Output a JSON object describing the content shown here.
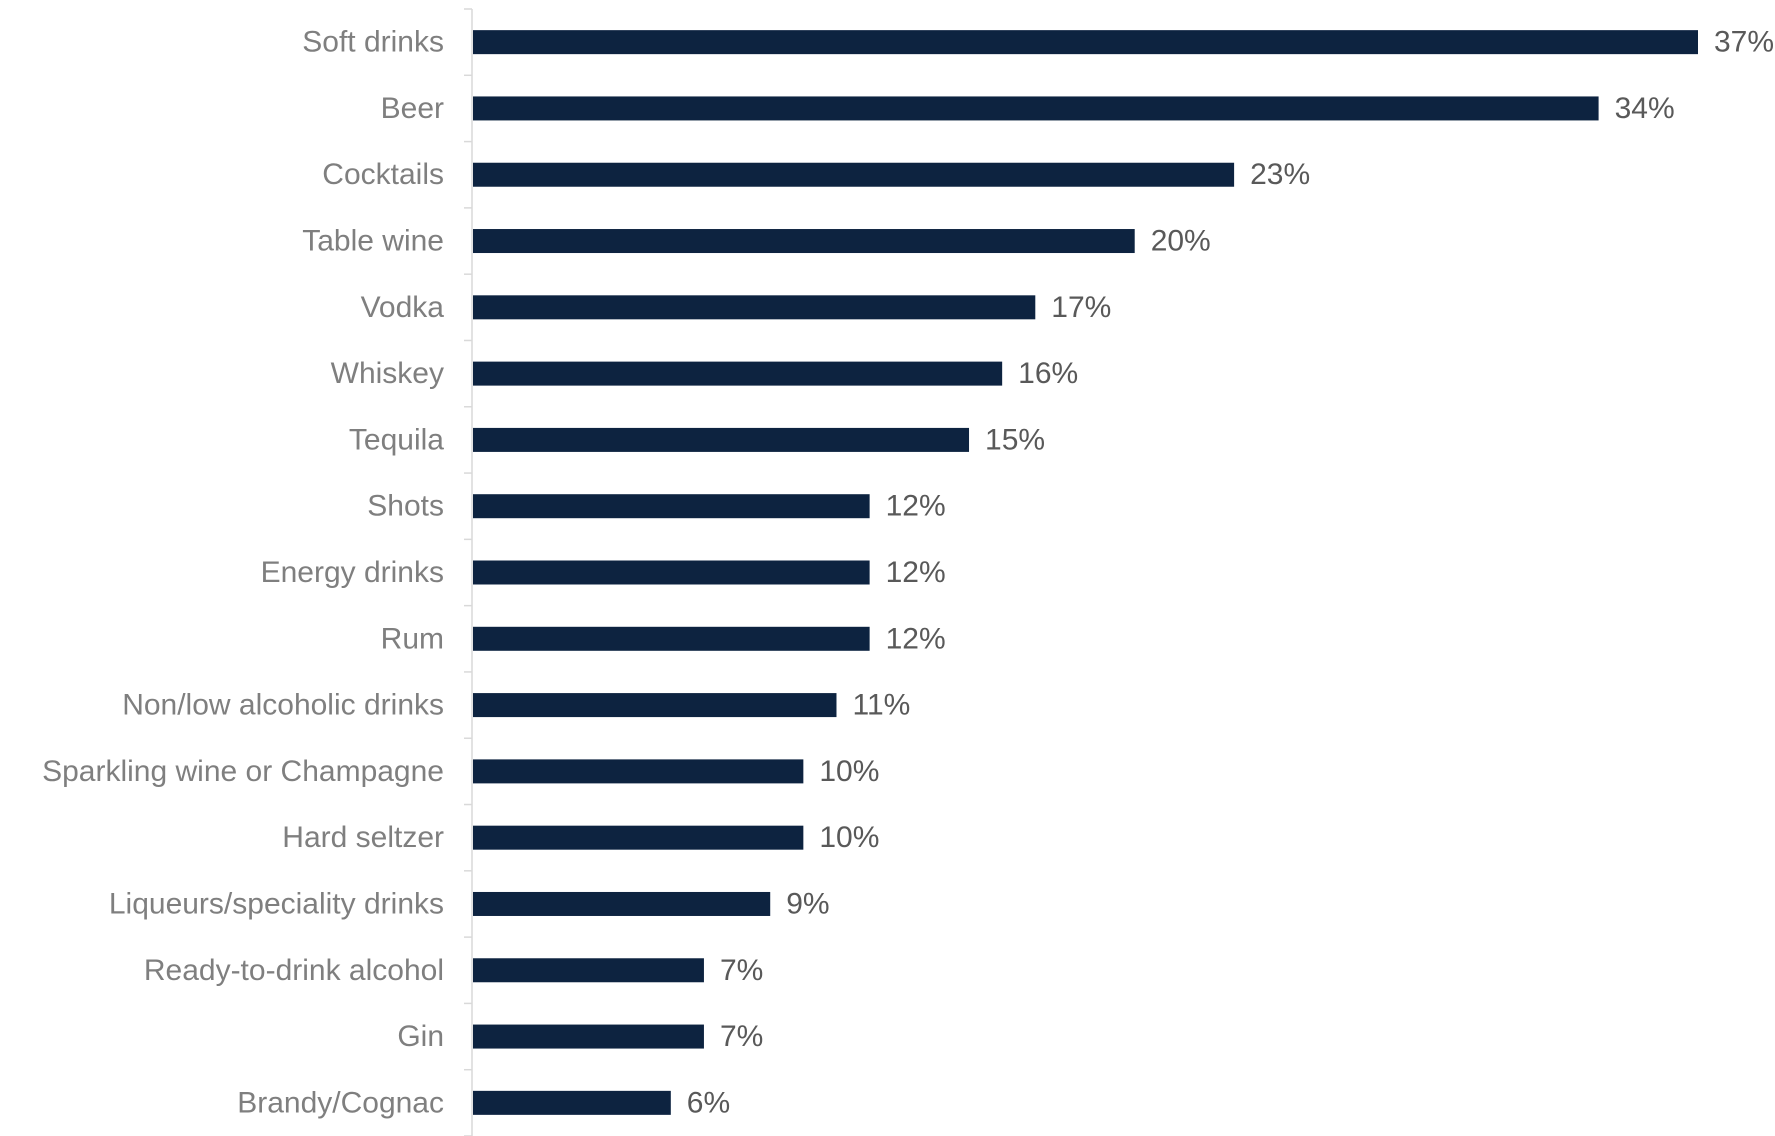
{
  "chart_data": {
    "type": "bar",
    "orientation": "horizontal",
    "categories": [
      "Soft drinks",
      "Beer",
      "Cocktails",
      "Table wine",
      "Vodka",
      "Whiskey",
      "Tequila",
      "Shots",
      "Energy drinks",
      "Rum",
      "Non/low alcoholic drinks",
      "Sparkling wine or Champagne",
      "Hard seltzer",
      "Liqueurs/speciality drinks",
      "Ready-to-drink alcohol",
      "Gin",
      "Brandy/Cognac"
    ],
    "values": [
      37,
      34,
      23,
      20,
      17,
      16,
      15,
      12,
      12,
      12,
      11,
      10,
      10,
      9,
      7,
      7,
      6
    ],
    "data_labels": [
      "37%",
      "34%",
      "23%",
      "20%",
      "17%",
      "16%",
      "15%",
      "12%",
      "12%",
      "12%",
      "11%",
      "10%",
      "10%",
      "9%",
      "7%",
      "7%",
      "6%"
    ],
    "value_unit": "%",
    "xlim": [
      0,
      37
    ],
    "grid": false,
    "legend": "none",
    "bar_color": "#0d2340",
    "label_color": "#7f7f7f",
    "value_label_color": "#595959",
    "axis_color": "#d9d9d9"
  }
}
